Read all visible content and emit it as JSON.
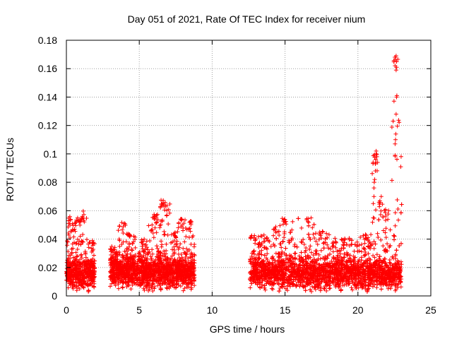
{
  "chart_data": {
    "type": "scatter",
    "title": "Day 051 of 2021, Rate Of TEC Index for receiver nium",
    "xlabel": "GPS time / hours",
    "ylabel": "ROTI / TECUs",
    "xlim": [
      0,
      25
    ],
    "ylim": [
      0,
      0.18
    ],
    "x_ticks": [
      "0",
      "5",
      "10",
      "15",
      "20",
      "25"
    ],
    "y_ticks": [
      "0",
      "0.02",
      "0.04",
      "0.06",
      "0.08",
      "0.1",
      "0.12",
      "0.14",
      "0.16",
      "0.18"
    ],
    "grid": true,
    "marker": "+",
    "color": "#ff0000",
    "segments": [
      {
        "x_start": 0.0,
        "x_end": 1.95,
        "baseline": 0.016,
        "peak": 0.061
      },
      {
        "x_start": 3.0,
        "x_end": 8.8,
        "baseline": 0.017,
        "peak": 0.068
      },
      {
        "x_start": 12.6,
        "x_end": 23.0,
        "baseline": 0.016,
        "peak": 0.055
      }
    ],
    "envelope": [
      {
        "x": 0.2,
        "y": 0.057
      },
      {
        "x": 0.5,
        "y": 0.052
      },
      {
        "x": 0.8,
        "y": 0.055
      },
      {
        "x": 1.1,
        "y": 0.06
      },
      {
        "x": 1.8,
        "y": 0.04
      },
      {
        "x": 3.2,
        "y": 0.035
      },
      {
        "x": 3.9,
        "y": 0.052
      },
      {
        "x": 4.3,
        "y": 0.044
      },
      {
        "x": 5.2,
        "y": 0.04
      },
      {
        "x": 6.0,
        "y": 0.058
      },
      {
        "x": 6.5,
        "y": 0.068
      },
      {
        "x": 6.8,
        "y": 0.066
      },
      {
        "x": 7.4,
        "y": 0.047
      },
      {
        "x": 7.9,
        "y": 0.055
      },
      {
        "x": 8.5,
        "y": 0.053
      },
      {
        "x": 12.8,
        "y": 0.044
      },
      {
        "x": 13.5,
        "y": 0.043
      },
      {
        "x": 14.4,
        "y": 0.05
      },
      {
        "x": 15.0,
        "y": 0.055
      },
      {
        "x": 16.5,
        "y": 0.055
      },
      {
        "x": 17.5,
        "y": 0.046
      },
      {
        "x": 19.0,
        "y": 0.041
      },
      {
        "x": 20.6,
        "y": 0.045
      },
      {
        "x": 21.2,
        "y": 0.102
      },
      {
        "x": 21.6,
        "y": 0.07
      },
      {
        "x": 22.0,
        "y": 0.062
      },
      {
        "x": 22.6,
        "y": 0.169
      }
    ],
    "spikes": [
      {
        "x": 21.05,
        "y": 0.055
      },
      {
        "x": 21.05,
        "y": 0.065
      },
      {
        "x": 21.1,
        "y": 0.07
      },
      {
        "x": 21.1,
        "y": 0.076
      },
      {
        "x": 21.12,
        "y": 0.08
      },
      {
        "x": 21.15,
        "y": 0.082
      },
      {
        "x": 21.2,
        "y": 0.088
      },
      {
        "x": 21.2,
        "y": 0.093
      },
      {
        "x": 21.22,
        "y": 0.096
      },
      {
        "x": 21.25,
        "y": 0.1
      },
      {
        "x": 21.25,
        "y": 0.102
      },
      {
        "x": 21.3,
        "y": 0.098
      },
      {
        "x": 21.35,
        "y": 0.094
      },
      {
        "x": 21.6,
        "y": 0.07
      },
      {
        "x": 22.55,
        "y": 0.099
      },
      {
        "x": 22.55,
        "y": 0.107
      },
      {
        "x": 22.58,
        "y": 0.11
      },
      {
        "x": 22.6,
        "y": 0.114
      },
      {
        "x": 22.62,
        "y": 0.128
      },
      {
        "x": 22.65,
        "y": 0.14
      },
      {
        "x": 22.67,
        "y": 0.141
      },
      {
        "x": 22.62,
        "y": 0.159
      },
      {
        "x": 22.65,
        "y": 0.161
      },
      {
        "x": 22.62,
        "y": 0.169
      }
    ]
  }
}
